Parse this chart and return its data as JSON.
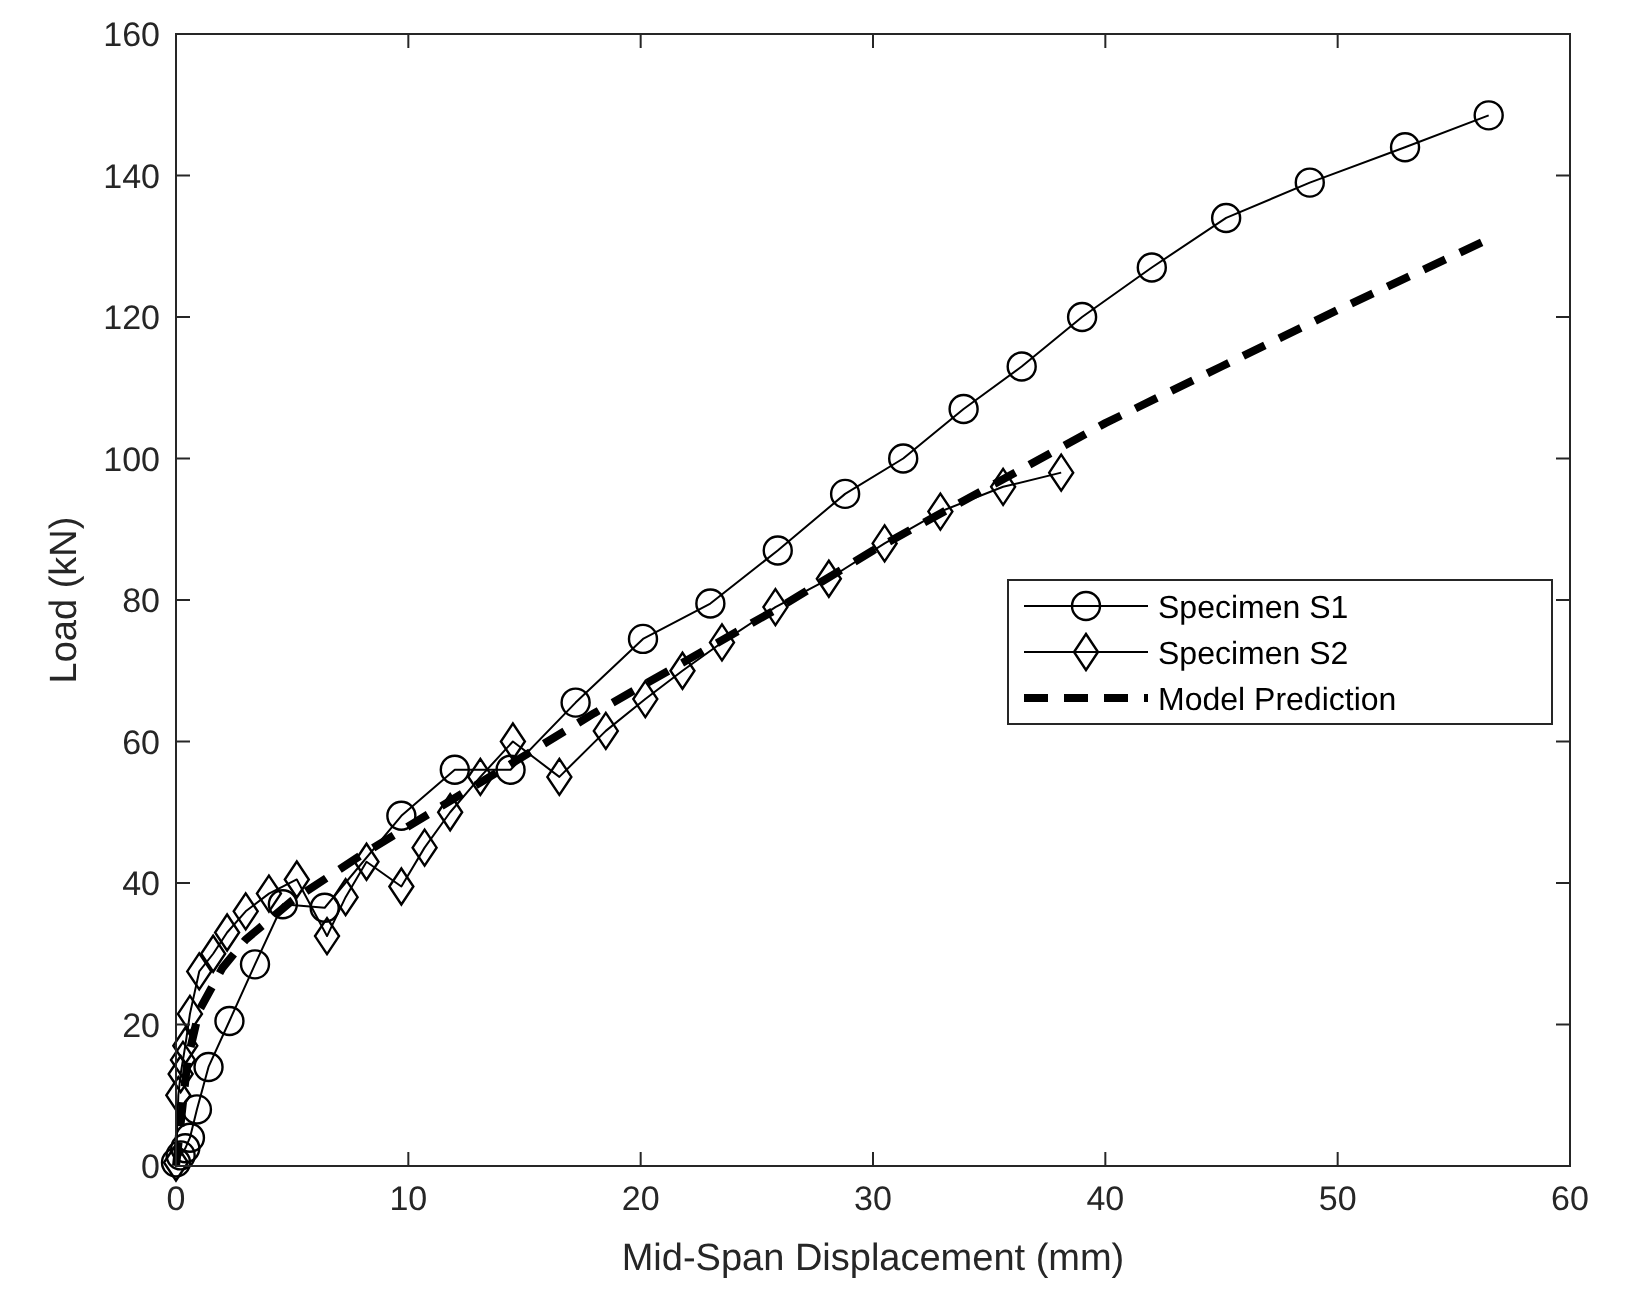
{
  "chart_data": {
    "type": "line",
    "xlabel": "Mid-Span Displacement (mm)",
    "ylabel": "Load (kN)",
    "xlim": [
      0,
      60
    ],
    "xticks": [
      0,
      10,
      20,
      30,
      40,
      50,
      60
    ],
    "ylim": [
      0,
      160
    ],
    "yticks": [
      0,
      20,
      40,
      60,
      80,
      100,
      120,
      140,
      160
    ],
    "grid": false,
    "legend": "right",
    "series": [
      {
        "name": "Specimen S1",
        "color": "#000000",
        "marker": "circle",
        "line_style": "solid",
        "x": [
          0,
          0.2,
          0.4,
          0.6,
          0.9,
          1.4,
          2.3,
          3.4,
          4.6,
          6.4,
          9.7,
          12,
          14.4,
          17.2,
          20.1,
          23,
          25.9,
          28.8,
          31.3,
          33.9,
          36.4,
          39,
          42,
          45.2,
          48.8,
          52.9,
          56.5
        ],
        "values": [
          0.5,
          1.5,
          2.5,
          4,
          8,
          14,
          20.5,
          28.5,
          37,
          36.5,
          49.5,
          56,
          56,
          65.5,
          74.5,
          79.5,
          87,
          95,
          100,
          107,
          113,
          120,
          127,
          134,
          139,
          144,
          148.5
        ]
      },
      {
        "name": "Specimen S2",
        "color": "#000000",
        "marker": "diamond",
        "line_style": "solid",
        "x": [
          0,
          0.1,
          0.2,
          0.3,
          0.4,
          0.6,
          1,
          1.6,
          2.2,
          3,
          4,
          5.2,
          6.5,
          7.3,
          8.2,
          9.7,
          10.7,
          11.8,
          13.1,
          14.5,
          16.5,
          18.5,
          20.2,
          21.8,
          23.5,
          25.8,
          28.1,
          30.5,
          32.9,
          35.6,
          38.1
        ],
        "values": [
          0.5,
          10,
          13,
          15,
          17,
          21.5,
          27.5,
          30,
          33,
          36,
          38.5,
          40.5,
          32.5,
          38,
          43,
          39.5,
          45,
          50,
          55,
          60,
          55,
          61.5,
          66,
          70,
          74,
          79,
          83,
          88,
          92.5,
          96,
          98
        ]
      },
      {
        "name": "Model Prediction",
        "color": "#000000",
        "marker": "none",
        "line_style": "dashed",
        "x": [
          0,
          0.5,
          1,
          2,
          3,
          5,
          8,
          10,
          14,
          18,
          22,
          26,
          30,
          35,
          40,
          45,
          50,
          56.5
        ],
        "values": [
          0,
          15,
          22,
          28,
          32,
          37.5,
          44,
          48,
          56,
          64,
          71.5,
          79,
          87,
          96,
          105,
          113,
          121,
          131
        ]
      }
    ]
  }
}
